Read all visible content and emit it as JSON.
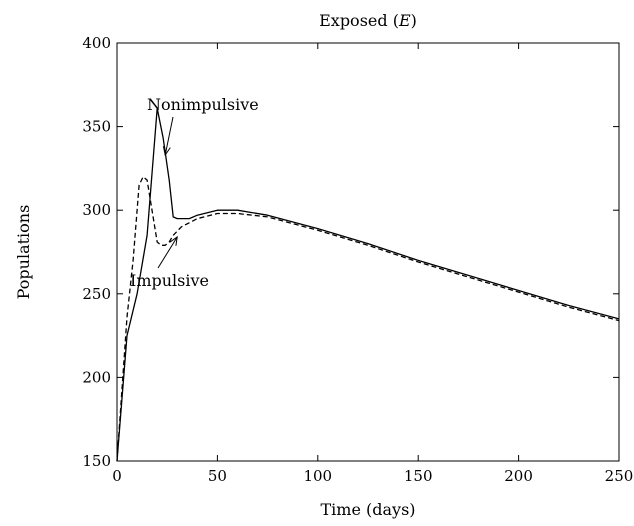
{
  "chart_data": {
    "type": "line",
    "title": "Exposed (",
    "title_var": "E",
    "title_end": ")",
    "xlabel": "Time (days)",
    "ylabel": "Populations",
    "xlim": [
      0,
      250
    ],
    "ylim": [
      150,
      400
    ],
    "xticks": [
      0,
      50,
      100,
      150,
      200,
      250
    ],
    "yticks": [
      150,
      200,
      250,
      300,
      350,
      400
    ],
    "xtick_labels": [
      "0",
      "50",
      "100",
      "150",
      "200",
      "250"
    ],
    "ytick_labels": [
      "150",
      "200",
      "250",
      "300",
      "350",
      "400"
    ],
    "grid": false,
    "series": [
      {
        "name": "Nonimpulsive",
        "style": "solid",
        "points": [
          [
            0,
            150
          ],
          [
            5,
            225
          ],
          [
            10,
            250
          ],
          [
            15,
            285
          ],
          [
            20,
            361
          ],
          [
            23,
            343
          ],
          [
            26,
            318
          ],
          [
            28,
            296
          ],
          [
            30,
            295
          ],
          [
            33,
            295
          ],
          [
            36,
            295
          ],
          [
            40,
            297
          ],
          [
            50,
            300
          ],
          [
            60,
            300
          ],
          [
            75,
            297
          ],
          [
            100,
            289
          ],
          [
            125,
            280
          ],
          [
            150,
            270
          ],
          [
            175,
            261
          ],
          [
            200,
            252
          ],
          [
            225,
            243
          ],
          [
            250,
            235
          ]
        ]
      },
      {
        "name": "Impulsive",
        "style": "dashed",
        "points": [
          [
            0,
            150
          ],
          [
            5,
            236
          ],
          [
            8,
            270
          ],
          [
            11,
            315
          ],
          [
            13,
            320
          ],
          [
            15,
            318
          ],
          [
            18,
            296
          ],
          [
            20,
            281
          ],
          [
            22,
            279
          ],
          [
            24,
            279
          ],
          [
            26,
            281
          ],
          [
            28,
            285
          ],
          [
            32,
            290
          ],
          [
            40,
            295
          ],
          [
            50,
            298
          ],
          [
            60,
            298
          ],
          [
            75,
            296
          ],
          [
            100,
            288
          ],
          [
            125,
            279
          ],
          [
            150,
            269
          ],
          [
            175,
            260
          ],
          [
            200,
            251
          ],
          [
            225,
            242
          ],
          [
            250,
            234
          ]
        ]
      }
    ],
    "annotations": [
      {
        "text": "Nonimpulsive",
        "series": "Nonimpulsive",
        "at_x": 24,
        "at_y": 333
      },
      {
        "text": "Impulsive",
        "series": "Impulsive",
        "at_x": 30,
        "at_y": 284
      }
    ]
  }
}
